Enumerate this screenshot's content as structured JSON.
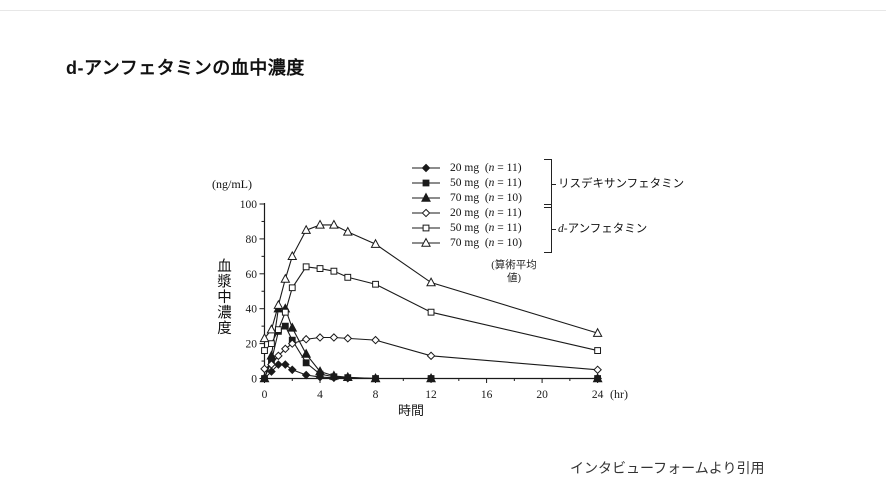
{
  "page": {
    "title": "d-アンフェタミンの血中濃度",
    "source_note": "インタビューフォームより引用"
  },
  "colors": {
    "ink": "#1a1a1a",
    "text": "#111111",
    "source": "#333333"
  },
  "chart_data": {
    "type": "line",
    "x": [
      0,
      0.5,
      1,
      1.5,
      2,
      3,
      4,
      5,
      6,
      8,
      12,
      24
    ],
    "series": [
      {
        "dose": "20 mg",
        "n_text": "(n = 11)",
        "group": "リスデキサンフェタミン",
        "marker": "diamond",
        "fill": "filled",
        "values": [
          0,
          4,
          8,
          8,
          5,
          2,
          0.8,
          0.4,
          0.2,
          0,
          0,
          0
        ]
      },
      {
        "dose": "50 mg",
        "n_text": "(n = 11)",
        "group": "リスデキサンフェタミン",
        "marker": "square",
        "fill": "filled",
        "values": [
          0,
          10,
          27,
          30,
          22,
          9,
          2.5,
          1,
          0.5,
          0,
          0,
          0
        ]
      },
      {
        "dose": "70 mg",
        "n_text": "(n = 10)",
        "group": "リスデキサンフェタミン",
        "marker": "triangle",
        "fill": "filled",
        "values": [
          0,
          13,
          40,
          40,
          29,
          14,
          4,
          1.5,
          0.7,
          0,
          0,
          0
        ]
      },
      {
        "dose": "20 mg",
        "n_text": "(n = 11)",
        "group": "d-アンフェタミン",
        "marker": "diamond",
        "fill": "open",
        "values": [
          5.5,
          8,
          13,
          17,
          20,
          22.5,
          23.5,
          23.5,
          23,
          22,
          13,
          5
        ]
      },
      {
        "dose": "50 mg",
        "n_text": "(n = 11)",
        "group": "d-アンフェタミン",
        "marker": "square",
        "fill": "open",
        "values": [
          16,
          20,
          28,
          38,
          52,
          64,
          63,
          61.5,
          58,
          54,
          38,
          16
        ]
      },
      {
        "dose": "70 mg",
        "n_text": "(n = 10)",
        "group": "d-アンフェタミン",
        "marker": "triangle",
        "fill": "open",
        "values": [
          23,
          28,
          42,
          57,
          70,
          85,
          88,
          88,
          84,
          77,
          55,
          26
        ]
      }
    ],
    "groups": [
      {
        "label": "リスデキサンフェタミン",
        "rows": [
          0,
          1,
          2
        ]
      },
      {
        "label": "d-アンフェタミン",
        "rows": [
          3,
          4,
          5
        ]
      }
    ],
    "note_line1": "(算術平均",
    "note_line2": "値)",
    "ylabel": "血漿中濃度",
    "y_unit": "(ng/mL)",
    "xlabel": "時間",
    "x_unit": "(hr)",
    "x_ticks": [
      0,
      4,
      8,
      12,
      16,
      20,
      24
    ],
    "x_minor_ticks": [
      2,
      6,
      10,
      14,
      18,
      22
    ],
    "y_ticks": [
      0,
      20,
      40,
      60,
      80,
      100
    ],
    "y_minor_ticks": [
      10,
      30,
      50,
      70,
      90
    ],
    "xlim": [
      0,
      24
    ],
    "ylim": [
      0,
      100
    ],
    "legend_position": "top-right",
    "grid": false
  }
}
